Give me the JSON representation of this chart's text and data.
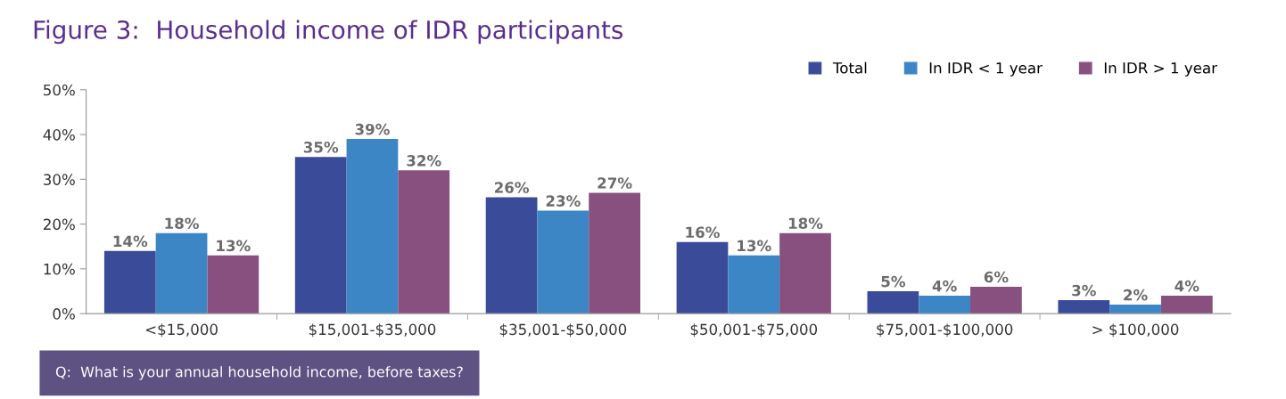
{
  "chart_data": {
    "type": "bar",
    "title": "Figure 3:  Household income of IDR participants",
    "categories": [
      "<$15,000",
      "$15,001-$35,000",
      "$35,001-$50,000",
      "$50,001-$75,000",
      "$75,001-$100,000",
      "> $100,000"
    ],
    "series": [
      {
        "name": "Total",
        "color": "#3a4b9a",
        "values": [
          14,
          35,
          26,
          16,
          5,
          3
        ],
        "value_labels": [
          "14%",
          "35%",
          "26%",
          "16%",
          "5%",
          "3%"
        ]
      },
      {
        "name": "In IDR < 1 year",
        "color": "#3d86c6",
        "values": [
          18,
          39,
          23,
          13,
          4,
          2
        ],
        "value_labels": [
          "18%",
          "39%",
          "23%",
          "13%",
          "4%",
          "2%"
        ]
      },
      {
        "name": "In IDR > 1 year",
        "color": "#87507f",
        "values": [
          13,
          32,
          27,
          18,
          6,
          4
        ],
        "value_labels": [
          "13%",
          "32%",
          "27%",
          "18%",
          "6%",
          "4%"
        ]
      }
    ],
    "ylim": [
      0,
      50
    ],
    "yticks": [
      {
        "value": 0,
        "label": "0%"
      },
      {
        "value": 10,
        "label": "10%"
      },
      {
        "value": 20,
        "label": "20%"
      },
      {
        "value": 30,
        "label": "30%"
      },
      {
        "value": 40,
        "label": "40%"
      },
      {
        "value": 50,
        "label": "50%"
      }
    ],
    "grid": false,
    "legend": "top right",
    "annotations": [
      "Q:  What is your annual household income, before taxes?"
    ]
  }
}
